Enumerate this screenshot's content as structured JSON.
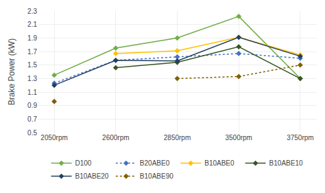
{
  "chart_data": {
    "type": "line",
    "categories": [
      "2050rpm",
      "2600rpm",
      "2850rpm",
      "3500rpm",
      "3750rpm"
    ],
    "series": [
      {
        "name": "D100",
        "color": "#70ad47",
        "line_style": "solid",
        "marker": "diamond",
        "values": [
          1.35,
          1.75,
          1.9,
          2.22,
          1.3
        ]
      },
      {
        "name": "B20ABE0",
        "color": "#4472c4",
        "line_style": "dotted",
        "marker": "diamond",
        "values": [
          1.23,
          1.57,
          1.62,
          1.67,
          1.6
        ]
      },
      {
        "name": "B10ABE0",
        "color": "#ffc000",
        "line_style": "solid",
        "marker": "diamond",
        "values": [
          null,
          1.67,
          1.71,
          1.91,
          1.65
        ]
      },
      {
        "name": "B10ABE10",
        "color": "#375623",
        "line_style": "solid",
        "marker": "diamond",
        "values": [
          null,
          1.46,
          1.54,
          1.77,
          1.3
        ]
      },
      {
        "name": "B10ABE20",
        "color": "#243f60",
        "line_style": "solid",
        "marker": "diamond",
        "values": [
          1.2,
          1.57,
          1.56,
          1.91,
          1.63
        ]
      },
      {
        "name": "B10ABE90",
        "color": "#7f6000",
        "line_style": "dotted",
        "marker": "diamond",
        "values": [
          0.96,
          null,
          1.3,
          1.33,
          1.5
        ]
      }
    ],
    "ylabel": "Brake Power (kW)",
    "ylim": [
      0.5,
      2.3
    ],
    "yticks": [
      0.5,
      0.7,
      0.9,
      1.1,
      1.3,
      1.5,
      1.7,
      1.9,
      2.1,
      2.3
    ],
    "grid": true,
    "legend": "bottom"
  }
}
